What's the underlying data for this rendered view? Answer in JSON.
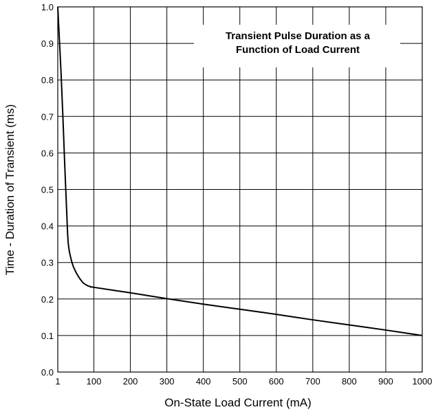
{
  "chart_data": {
    "type": "line",
    "title_lines": [
      "Transient Pulse Duration as a",
      "Function of Load Current"
    ],
    "xlabel": "On-State Load Current (mA)",
    "ylabel": "Time - Duration of Transient (ms)",
    "x_tick_labels": [
      "1",
      "100",
      "200",
      "300",
      "400",
      "500",
      "600",
      "700",
      "800",
      "900",
      "1000"
    ],
    "y_tick_labels": [
      "0.0",
      "0.1",
      "0.2",
      "0.3",
      "0.4",
      "0.5",
      "0.6",
      "0.7",
      "0.8",
      "0.9",
      "1.0"
    ],
    "xlim": [
      1,
      1000
    ],
    "ylim": [
      0,
      1
    ],
    "grid": true,
    "series": [
      {
        "x": [
          1,
          5,
          10,
          15,
          20,
          25,
          30,
          40,
          50,
          60,
          70,
          80,
          90,
          100,
          200,
          300,
          400,
          500,
          600,
          700,
          800,
          900,
          1000
        ],
        "y": [
          1.0,
          0.92,
          0.82,
          0.7,
          0.57,
          0.45,
          0.35,
          0.3,
          0.275,
          0.258,
          0.245,
          0.238,
          0.234,
          0.232,
          0.217,
          0.201,
          0.186,
          0.172,
          0.158,
          0.143,
          0.129,
          0.115,
          0.1
        ]
      }
    ]
  }
}
